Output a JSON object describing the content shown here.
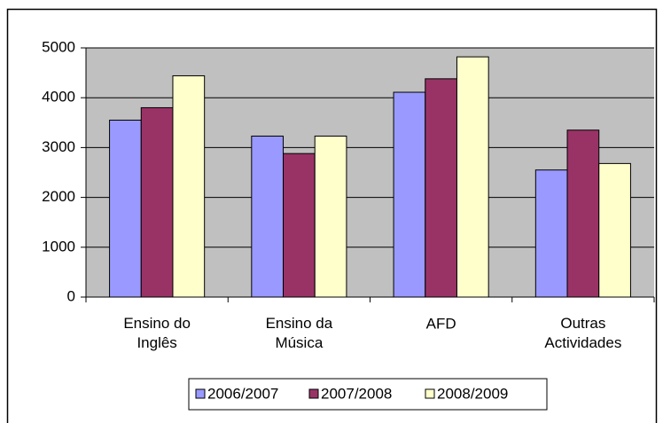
{
  "chart_data": {
    "type": "bar",
    "categories": [
      "Ensino do\nInglês",
      "Ensino da\nMúsica",
      "AFD",
      "Outras\nActividades"
    ],
    "series": [
      {
        "name": "2006/2007",
        "color": "#9999ff",
        "values": [
          3550,
          3230,
          4110,
          2550
        ]
      },
      {
        "name": "2007/2008",
        "color": "#993366",
        "values": [
          3800,
          2880,
          4380,
          3350
        ]
      },
      {
        "name": "2008/2009",
        "color": "#ffffcc",
        "values": [
          4440,
          3230,
          4820,
          2680
        ]
      }
    ],
    "ylim": [
      0,
      5000
    ],
    "yticks": [
      0,
      1000,
      2000,
      3000,
      4000,
      5000
    ],
    "grid": true,
    "legend": "bottom"
  }
}
